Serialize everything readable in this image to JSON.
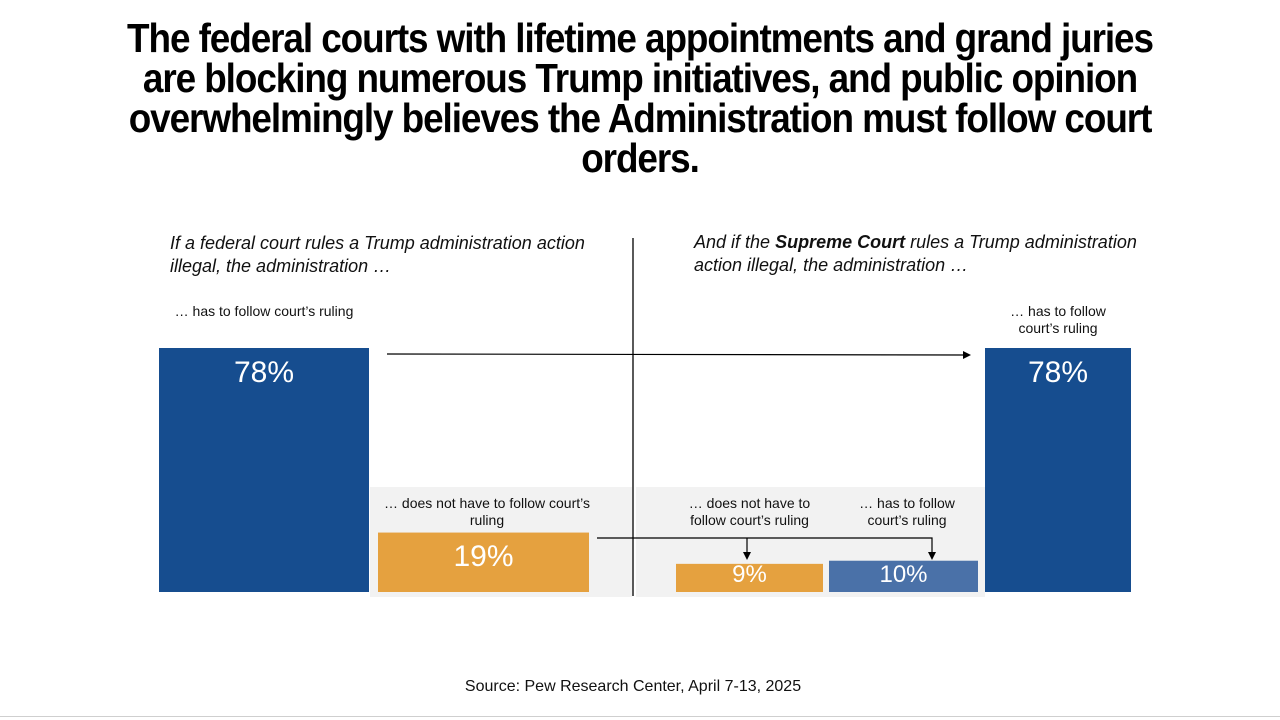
{
  "title_lines": [
    "The federal courts with lifetime appointments and grand juries",
    "are blocking numerous Trump initiatives, and public opinion",
    "overwhelmingly believes the Administration must follow court",
    "orders."
  ],
  "chart_data": {
    "type": "bar",
    "panels": [
      {
        "question": "If a federal court rules a Trump administration action illegal, the administration …",
        "categories": [
          "… has to follow court’s ruling",
          "… does not have to follow court’s ruling"
        ],
        "values": [
          78,
          19
        ],
        "value_labels": [
          "78%",
          "19%"
        ]
      },
      {
        "question_parts": [
          "And if the ",
          "Supreme Court",
          " rules a Trump administration action illegal, the administration …"
        ],
        "categories": [
          "… does not have to follow court’s ruling",
          "… has to follow court’s ruling",
          "… has to follow court’s ruling"
        ],
        "values": [
          9,
          10,
          78
        ],
        "value_labels": [
          "9%",
          "10%",
          "78%"
        ]
      }
    ],
    "colors": {
      "dark_blue": "#164d8f",
      "orange": "#e5a13f",
      "mid_blue": "#4a71a8",
      "panel_bg": "#f2f2f2"
    }
  },
  "source": "Source: Pew Research Center, April 7-13, 2025"
}
